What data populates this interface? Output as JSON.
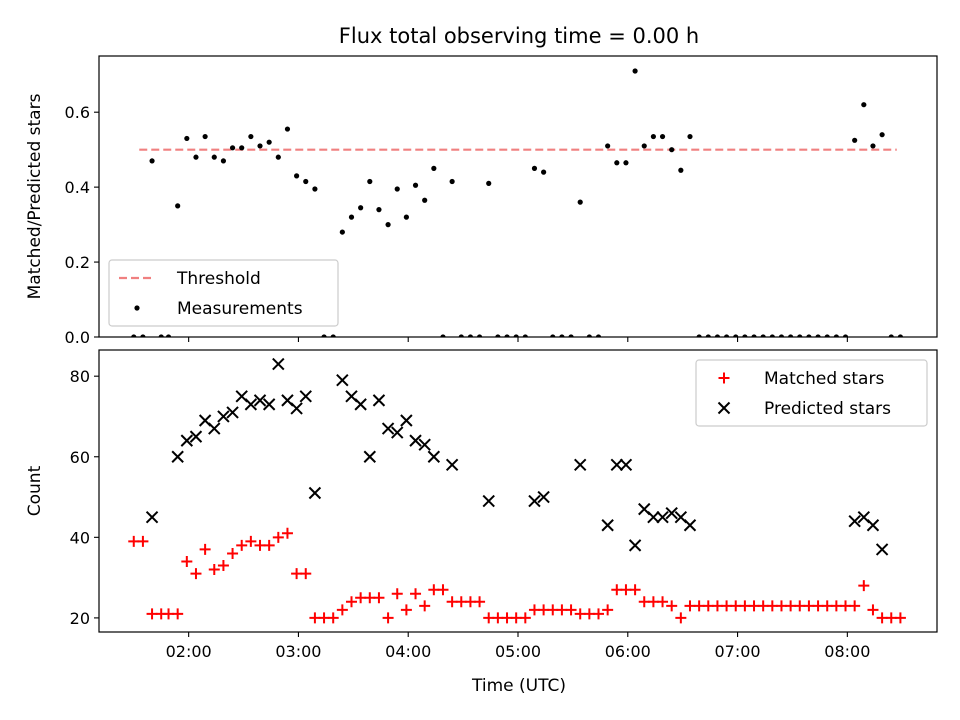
{
  "figure": {
    "title": "Flux total observing time = 0.00 h",
    "xlabel": "Time (UTC)"
  },
  "chart_data": [
    {
      "type": "scatter",
      "ylabel": "Matched/Predicted stars",
      "xlim": [
        "01:11",
        "08:49"
      ],
      "ylim": [
        0,
        0.75
      ],
      "yticks": [
        0.0,
        0.2,
        0.4,
        0.6
      ],
      "yticklabels": [
        "0.0",
        "0.2",
        "0.4",
        "0.6"
      ],
      "xticks": [
        "02:00",
        "03:00",
        "04:00",
        "05:00",
        "06:00",
        "07:00",
        "08:00"
      ],
      "legend": {
        "placement": "lower-left",
        "entries": [
          "Threshold",
          "Measurements"
        ]
      },
      "series": [
        {
          "name": "Threshold",
          "kind": "dashed-line",
          "color": "#f08080",
          "points": [
            {
              "x": "01:33",
              "y": 0.5
            },
            {
              "x": "08:27",
              "y": 0.5
            }
          ]
        },
        {
          "name": "Measurements",
          "kind": "dot",
          "color": "#000000",
          "points": [
            {
              "x": "01:30",
              "y": 0
            },
            {
              "x": "01:35",
              "y": 0
            },
            {
              "x": "01:40",
              "y": 0.47
            },
            {
              "x": "01:45",
              "y": 0
            },
            {
              "x": "01:49",
              "y": 0
            },
            {
              "x": "01:54",
              "y": 0.35
            },
            {
              "x": "01:59",
              "y": 0.53
            },
            {
              "x": "02:04",
              "y": 0.48
            },
            {
              "x": "02:09",
              "y": 0.535
            },
            {
              "x": "02:14",
              "y": 0.48
            },
            {
              "x": "02:19",
              "y": 0.47
            },
            {
              "x": "02:24",
              "y": 0.505
            },
            {
              "x": "02:29",
              "y": 0.505
            },
            {
              "x": "02:34",
              "y": 0.535
            },
            {
              "x": "02:39",
              "y": 0.51
            },
            {
              "x": "02:44",
              "y": 0.52
            },
            {
              "x": "02:49",
              "y": 0.48
            },
            {
              "x": "02:54",
              "y": 0.555
            },
            {
              "x": "02:59",
              "y": 0.43
            },
            {
              "x": "03:04",
              "y": 0.415
            },
            {
              "x": "03:09",
              "y": 0.395
            },
            {
              "x": "03:14",
              "y": 0
            },
            {
              "x": "03:19",
              "y": 0
            },
            {
              "x": "03:24",
              "y": 0.28
            },
            {
              "x": "03:29",
              "y": 0.32
            },
            {
              "x": "03:34",
              "y": 0.345
            },
            {
              "x": "03:39",
              "y": 0.415
            },
            {
              "x": "03:44",
              "y": 0.34
            },
            {
              "x": "03:49",
              "y": 0.3
            },
            {
              "x": "03:54",
              "y": 0.395
            },
            {
              "x": "03:59",
              "y": 0.32
            },
            {
              "x": "04:04",
              "y": 0.405
            },
            {
              "x": "04:09",
              "y": 0.365
            },
            {
              "x": "04:14",
              "y": 0.45
            },
            {
              "x": "04:19",
              "y": 0
            },
            {
              "x": "04:24",
              "y": 0.415
            },
            {
              "x": "04:29",
              "y": 0
            },
            {
              "x": "04:34",
              "y": 0
            },
            {
              "x": "04:39",
              "y": 0
            },
            {
              "x": "04:44",
              "y": 0.41
            },
            {
              "x": "04:49",
              "y": 0
            },
            {
              "x": "04:54",
              "y": 0
            },
            {
              "x": "04:59",
              "y": 0
            },
            {
              "x": "05:04",
              "y": 0
            },
            {
              "x": "05:09",
              "y": 0.45
            },
            {
              "x": "05:14",
              "y": 0.44
            },
            {
              "x": "05:19",
              "y": 0
            },
            {
              "x": "05:24",
              "y": 0
            },
            {
              "x": "05:29",
              "y": 0
            },
            {
              "x": "05:34",
              "y": 0.36
            },
            {
              "x": "05:39",
              "y": 0
            },
            {
              "x": "05:44",
              "y": 0
            },
            {
              "x": "05:49",
              "y": 0.51
            },
            {
              "x": "05:54",
              "y": 0.465
            },
            {
              "x": "05:59",
              "y": 0.465
            },
            {
              "x": "06:04",
              "y": 0.71
            },
            {
              "x": "06:09",
              "y": 0.51
            },
            {
              "x": "06:14",
              "y": 0.535
            },
            {
              "x": "06:19",
              "y": 0.535
            },
            {
              "x": "06:24",
              "y": 0.5
            },
            {
              "x": "06:29",
              "y": 0.445
            },
            {
              "x": "06:34",
              "y": 0.535
            },
            {
              "x": "06:39",
              "y": 0
            },
            {
              "x": "06:44",
              "y": 0
            },
            {
              "x": "06:49",
              "y": 0
            },
            {
              "x": "06:54",
              "y": 0
            },
            {
              "x": "06:59",
              "y": 0
            },
            {
              "x": "07:04",
              "y": 0
            },
            {
              "x": "07:09",
              "y": 0
            },
            {
              "x": "07:14",
              "y": 0
            },
            {
              "x": "07:19",
              "y": 0
            },
            {
              "x": "07:24",
              "y": 0
            },
            {
              "x": "07:29",
              "y": 0
            },
            {
              "x": "07:34",
              "y": 0
            },
            {
              "x": "07:39",
              "y": 0
            },
            {
              "x": "07:44",
              "y": 0
            },
            {
              "x": "07:49",
              "y": 0
            },
            {
              "x": "07:54",
              "y": 0
            },
            {
              "x": "07:59",
              "y": 0
            },
            {
              "x": "08:04",
              "y": 0.525
            },
            {
              "x": "08:09",
              "y": 0.62
            },
            {
              "x": "08:14",
              "y": 0.51
            },
            {
              "x": "08:19",
              "y": 0.54
            },
            {
              "x": "08:24",
              "y": 0
            },
            {
              "x": "08:29",
              "y": 0
            }
          ]
        }
      ]
    },
    {
      "type": "scatter",
      "ylabel": "Count",
      "xlabel": "Time (UTC)",
      "xlim": [
        "01:11",
        "08:49"
      ],
      "ylim": [
        16.5,
        86.5
      ],
      "yticks": [
        20,
        40,
        60,
        80
      ],
      "yticklabels": [
        "20",
        "40",
        "60",
        "80"
      ],
      "xticks": [
        "02:00",
        "03:00",
        "04:00",
        "05:00",
        "06:00",
        "07:00",
        "08:00"
      ],
      "legend": {
        "placement": "top-right",
        "entries": [
          "Matched stars",
          "Predicted stars"
        ]
      },
      "series": [
        {
          "name": "Matched stars",
          "kind": "plus",
          "color": "#ff0000",
          "points": [
            {
              "x": "01:30",
              "y": 39
            },
            {
              "x": "01:35",
              "y": 39
            },
            {
              "x": "01:40",
              "y": 21
            },
            {
              "x": "01:45",
              "y": 21
            },
            {
              "x": "01:49",
              "y": 21
            },
            {
              "x": "01:54",
              "y": 21
            },
            {
              "x": "01:59",
              "y": 34
            },
            {
              "x": "02:04",
              "y": 31
            },
            {
              "x": "02:09",
              "y": 37
            },
            {
              "x": "02:14",
              "y": 32
            },
            {
              "x": "02:19",
              "y": 33
            },
            {
              "x": "02:24",
              "y": 36
            },
            {
              "x": "02:29",
              "y": 38
            },
            {
              "x": "02:34",
              "y": 39
            },
            {
              "x": "02:39",
              "y": 38
            },
            {
              "x": "02:44",
              "y": 38
            },
            {
              "x": "02:49",
              "y": 40
            },
            {
              "x": "02:54",
              "y": 41
            },
            {
              "x": "02:59",
              "y": 31
            },
            {
              "x": "03:04",
              "y": 31
            },
            {
              "x": "03:09",
              "y": 20
            },
            {
              "x": "03:14",
              "y": 20
            },
            {
              "x": "03:19",
              "y": 20
            },
            {
              "x": "03:24",
              "y": 22
            },
            {
              "x": "03:29",
              "y": 24
            },
            {
              "x": "03:34",
              "y": 25
            },
            {
              "x": "03:39",
              "y": 25
            },
            {
              "x": "03:44",
              "y": 25
            },
            {
              "x": "03:49",
              "y": 20
            },
            {
              "x": "03:54",
              "y": 26
            },
            {
              "x": "03:59",
              "y": 22
            },
            {
              "x": "04:04",
              "y": 26
            },
            {
              "x": "04:09",
              "y": 23
            },
            {
              "x": "04:14",
              "y": 27
            },
            {
              "x": "04:19",
              "y": 27
            },
            {
              "x": "04:24",
              "y": 24
            },
            {
              "x": "04:29",
              "y": 24
            },
            {
              "x": "04:34",
              "y": 24
            },
            {
              "x": "04:39",
              "y": 24
            },
            {
              "x": "04:44",
              "y": 20
            },
            {
              "x": "04:49",
              "y": 20
            },
            {
              "x": "04:54",
              "y": 20
            },
            {
              "x": "04:59",
              "y": 20
            },
            {
              "x": "05:04",
              "y": 20
            },
            {
              "x": "05:09",
              "y": 22
            },
            {
              "x": "05:14",
              "y": 22
            },
            {
              "x": "05:19",
              "y": 22
            },
            {
              "x": "05:24",
              "y": 22
            },
            {
              "x": "05:29",
              "y": 22
            },
            {
              "x": "05:34",
              "y": 21
            },
            {
              "x": "05:39",
              "y": 21
            },
            {
              "x": "05:44",
              "y": 21
            },
            {
              "x": "05:49",
              "y": 22
            },
            {
              "x": "05:54",
              "y": 27
            },
            {
              "x": "05:59",
              "y": 27
            },
            {
              "x": "06:04",
              "y": 27
            },
            {
              "x": "06:09",
              "y": 24
            },
            {
              "x": "06:14",
              "y": 24
            },
            {
              "x": "06:19",
              "y": 24
            },
            {
              "x": "06:24",
              "y": 23
            },
            {
              "x": "06:29",
              "y": 20
            },
            {
              "x": "06:34",
              "y": 23
            },
            {
              "x": "06:39",
              "y": 23
            },
            {
              "x": "06:44",
              "y": 23
            },
            {
              "x": "06:49",
              "y": 23
            },
            {
              "x": "06:54",
              "y": 23
            },
            {
              "x": "06:59",
              "y": 23
            },
            {
              "x": "07:04",
              "y": 23
            },
            {
              "x": "07:09",
              "y": 23
            },
            {
              "x": "07:14",
              "y": 23
            },
            {
              "x": "07:19",
              "y": 23
            },
            {
              "x": "07:24",
              "y": 23
            },
            {
              "x": "07:29",
              "y": 23
            },
            {
              "x": "07:34",
              "y": 23
            },
            {
              "x": "07:39",
              "y": 23
            },
            {
              "x": "07:44",
              "y": 23
            },
            {
              "x": "07:49",
              "y": 23
            },
            {
              "x": "07:54",
              "y": 23
            },
            {
              "x": "07:59",
              "y": 23
            },
            {
              "x": "08:04",
              "y": 23
            },
            {
              "x": "08:09",
              "y": 28
            },
            {
              "x": "08:14",
              "y": 22
            },
            {
              "x": "08:19",
              "y": 20
            },
            {
              "x": "08:24",
              "y": 20
            },
            {
              "x": "08:29",
              "y": 20
            }
          ]
        },
        {
          "name": "Predicted stars",
          "kind": "cross",
          "color": "#000000",
          "points": [
            {
              "x": "01:40",
              "y": 45
            },
            {
              "x": "01:54",
              "y": 60
            },
            {
              "x": "01:59",
              "y": 64
            },
            {
              "x": "02:04",
              "y": 65
            },
            {
              "x": "02:09",
              "y": 69
            },
            {
              "x": "02:14",
              "y": 67
            },
            {
              "x": "02:19",
              "y": 70
            },
            {
              "x": "02:24",
              "y": 71
            },
            {
              "x": "02:29",
              "y": 75
            },
            {
              "x": "02:34",
              "y": 73
            },
            {
              "x": "02:39",
              "y": 74
            },
            {
              "x": "02:44",
              "y": 73
            },
            {
              "x": "02:49",
              "y": 83
            },
            {
              "x": "02:54",
              "y": 74
            },
            {
              "x": "02:59",
              "y": 72
            },
            {
              "x": "03:04",
              "y": 75
            },
            {
              "x": "03:09",
              "y": 51
            },
            {
              "x": "03:24",
              "y": 79
            },
            {
              "x": "03:29",
              "y": 75
            },
            {
              "x": "03:34",
              "y": 73
            },
            {
              "x": "03:39",
              "y": 60
            },
            {
              "x": "03:44",
              "y": 74
            },
            {
              "x": "03:49",
              "y": 67
            },
            {
              "x": "03:54",
              "y": 66
            },
            {
              "x": "03:59",
              "y": 69
            },
            {
              "x": "04:04",
              "y": 64
            },
            {
              "x": "04:09",
              "y": 63
            },
            {
              "x": "04:14",
              "y": 60
            },
            {
              "x": "04:24",
              "y": 58
            },
            {
              "x": "04:44",
              "y": 49
            },
            {
              "x": "05:09",
              "y": 49
            },
            {
              "x": "05:14",
              "y": 50
            },
            {
              "x": "05:34",
              "y": 58
            },
            {
              "x": "05:49",
              "y": 43
            },
            {
              "x": "05:54",
              "y": 58
            },
            {
              "x": "05:59",
              "y": 58
            },
            {
              "x": "06:04",
              "y": 38
            },
            {
              "x": "06:09",
              "y": 47
            },
            {
              "x": "06:14",
              "y": 45
            },
            {
              "x": "06:19",
              "y": 45
            },
            {
              "x": "06:24",
              "y": 46
            },
            {
              "x": "06:29",
              "y": 45
            },
            {
              "x": "06:34",
              "y": 43
            },
            {
              "x": "08:04",
              "y": 44
            },
            {
              "x": "08:09",
              "y": 45
            },
            {
              "x": "08:14",
              "y": 43
            },
            {
              "x": "08:19",
              "y": 37
            }
          ]
        }
      ]
    }
  ]
}
